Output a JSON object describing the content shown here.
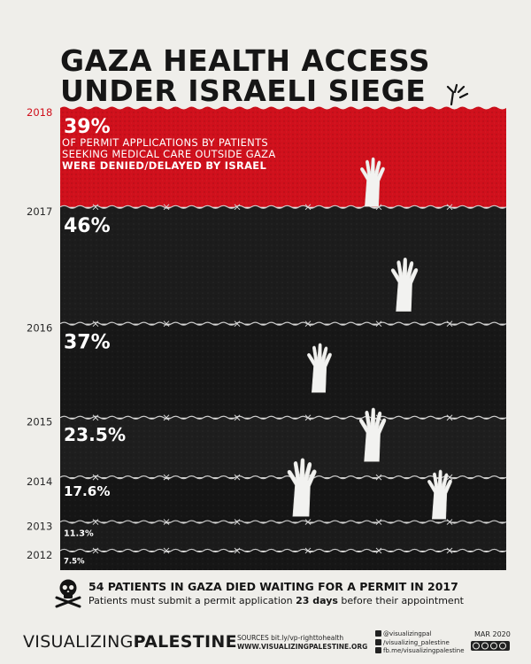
{
  "title": {
    "line1": "GAZA HEALTH ACCESS",
    "line2": "UNDER ISRAELI SIEGE"
  },
  "chart_data": {
    "type": "bar",
    "categories": [
      "2018",
      "2017",
      "2016",
      "2015",
      "2014",
      "2013",
      "2012"
    ],
    "values": [
      39,
      46,
      37,
      23.5,
      17.6,
      11.3,
      7.5
    ],
    "value_labels": [
      "39%",
      "46%",
      "37%",
      "23.5%",
      "17.6%",
      "11.3%",
      "7.5%"
    ],
    "unit": "%",
    "orientation": "horizontal-stacked-bands",
    "highlight_category": "2018",
    "description": {
      "line1": "OF PERMIT APPLICATIONS BY PATIENTS",
      "line2": "SEEKING MEDICAL CARE OUTSIDE GAZA",
      "line3": "WERE DENIED/DELAYED BY ISRAEL"
    },
    "colors": {
      "highlight": "#d0101c",
      "band": "#141414",
      "year_highlight": "#d0101c",
      "year": "#2a2a2a"
    }
  },
  "footer": {
    "fact": "54 PATIENTS IN GAZA DIED WAITING FOR A PERMIT IN 2017",
    "note_prefix": "Patients must submit a permit application ",
    "note_bold": "23 days",
    "note_suffix": " before their appointment"
  },
  "brand": {
    "light": "VISUALIZING",
    "strong": "PALESTINE"
  },
  "sources": {
    "line1": "SOURCES bit.ly/vp-righttohealth",
    "line2": "WWW.VISUALIZINGPALESTINE.ORG"
  },
  "social": {
    "twitter": "@visualizingpal",
    "instagram": "/visualizing_palestine",
    "facebook": "fb.me/visualizingpalestine"
  },
  "date": "MAR 2020",
  "icons": {
    "skull": "skull-crossbones-icon",
    "hands": "reaching-hand-icon",
    "wire": "barbed-wire-icon",
    "license": "creative-commons-icon"
  }
}
